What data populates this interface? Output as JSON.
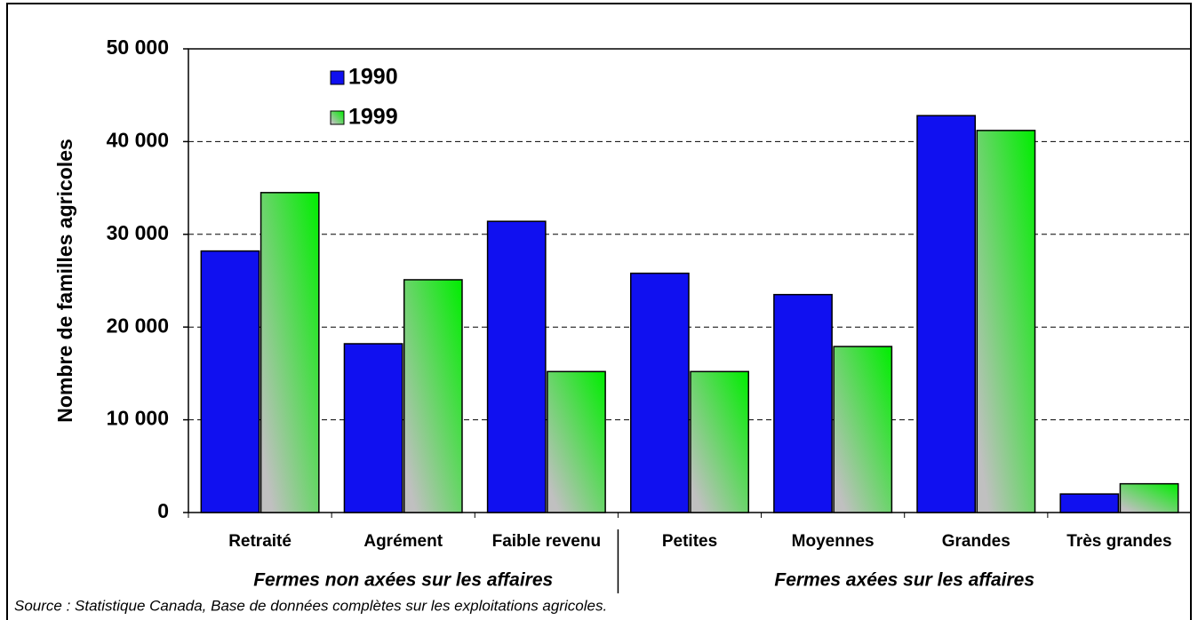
{
  "chart_data": {
    "type": "bar",
    "y_label": "Nombre de familles agricoles",
    "categories": [
      "Retraité",
      "Agrément",
      "Faible revenu",
      "Petites",
      "Moyennes",
      "Grandes",
      "Très grandes"
    ],
    "series": [
      {
        "name": "1990",
        "color": "#1010f0",
        "values": [
          28200,
          18200,
          31400,
          25800,
          23500,
          42800,
          2000
        ]
      },
      {
        "name": "1999",
        "color": "#00ee00",
        "values": [
          34500,
          25100,
          15200,
          15200,
          17900,
          41200,
          3100
        ]
      }
    ],
    "group_labels": [
      "Fermes non axées sur les affaires",
      "Fermes axées sur les affaires"
    ],
    "ylim": [
      0,
      50000
    ],
    "yticks": [
      {
        "value": 0,
        "label": "0"
      },
      {
        "value": 10000,
        "label": "10 000"
      },
      {
        "value": 20000,
        "label": "20 000"
      },
      {
        "value": 30000,
        "label": "30 000"
      },
      {
        "value": 40000,
        "label": "40 000"
      },
      {
        "value": 50000,
        "label": "50 000"
      }
    ],
    "grid": true,
    "legend": "upper left",
    "source": "Source : Statistique Canada, Base de données complètes sur les exploitations agricoles."
  }
}
